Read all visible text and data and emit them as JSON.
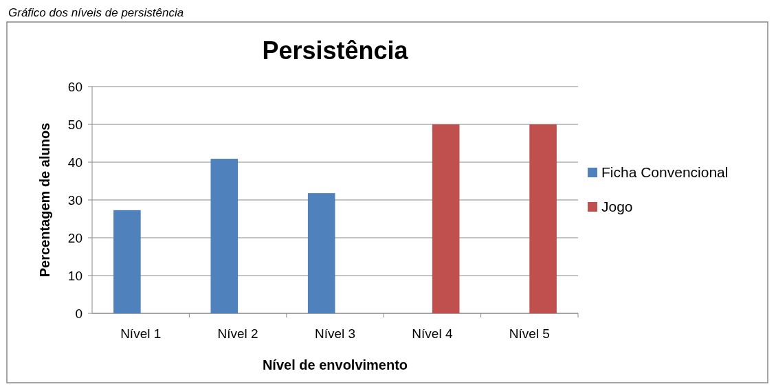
{
  "chart_data": {
    "type": "bar",
    "title": "Persistência",
    "xlabel": "Nível de envolvimento",
    "ylabel": "Percentagem de alunos",
    "annotations": [
      "Gráfico dos níveis de persistência"
    ],
    "categories": [
      "Nível 1",
      "Nível 2",
      "Nível 3",
      "Nível 4",
      "Nível 5"
    ],
    "series": [
      {
        "name": "Ficha Convencional",
        "color": "#4f81bd",
        "values": [
          27.3,
          40.9,
          31.8,
          null,
          null
        ]
      },
      {
        "name": "Jogo",
        "color": "#c0504d",
        "values": [
          null,
          null,
          null,
          50,
          50
        ]
      }
    ],
    "ylim": [
      0,
      60
    ],
    "yticks": [
      0,
      10,
      20,
      30,
      40,
      50,
      60
    ],
    "grid": "y",
    "legend": "right"
  }
}
